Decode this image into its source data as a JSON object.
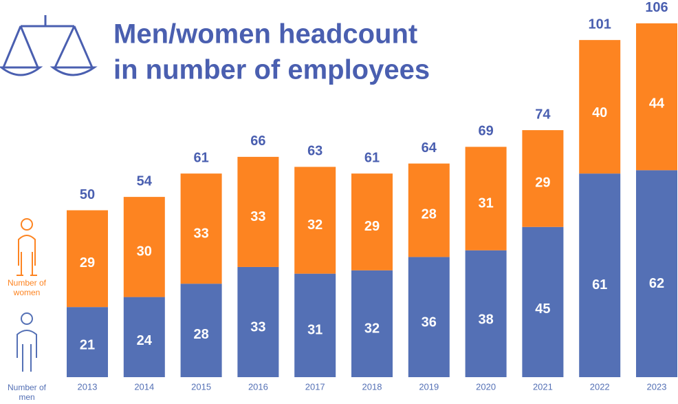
{
  "chart_data": {
    "type": "stacked_bar",
    "title": [
      "Men/women headcount",
      "in number of employees"
    ],
    "categories": [
      "2013",
      "2014",
      "2015",
      "2016",
      "2017",
      "2018",
      "2019",
      "2020",
      "2021",
      "2022",
      "2023"
    ],
    "series": [
      {
        "name": "Number of men",
        "color": "#5470b5",
        "values": [
          21,
          24,
          28,
          33,
          31,
          32,
          36,
          38,
          45,
          61,
          62
        ]
      },
      {
        "name": "Number of women",
        "color": "#fd8421",
        "values": [
          29,
          30,
          33,
          33,
          32,
          29,
          28,
          31,
          29,
          40,
          44
        ]
      }
    ],
    "totals": [
      50,
      54,
      61,
      66,
      63,
      61,
      64,
      69,
      74,
      101,
      106
    ]
  }
}
